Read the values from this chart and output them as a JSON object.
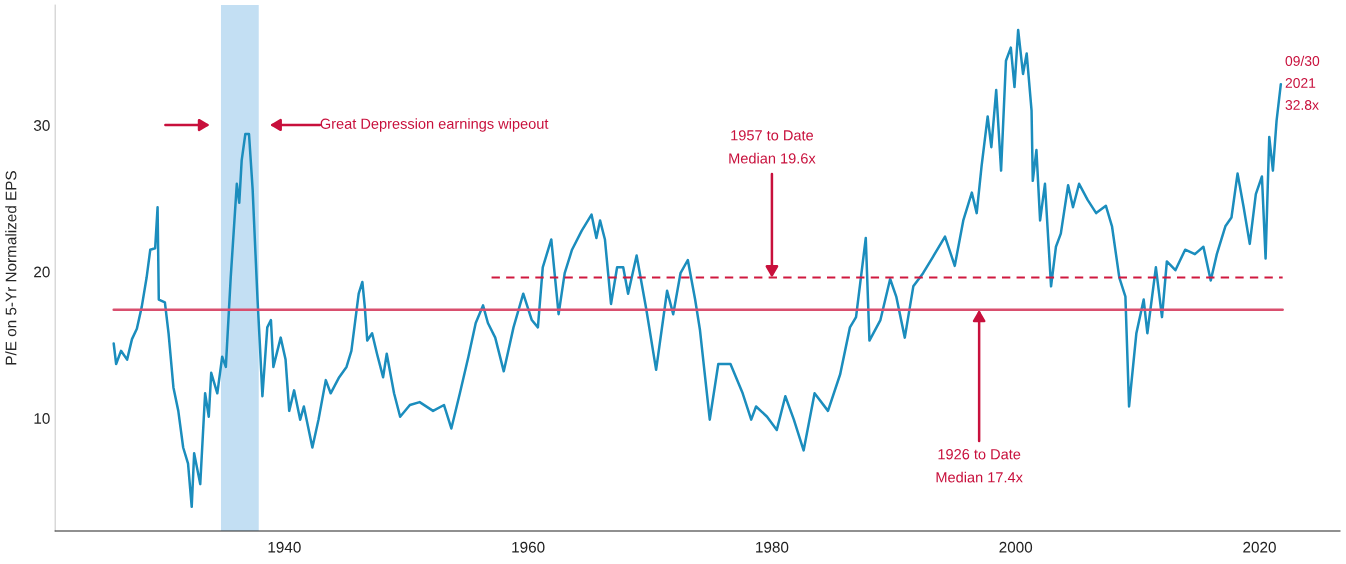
{
  "chart_data": {
    "type": "line",
    "ylabel": "P/E on 5-Yr Normalized EPS",
    "xlim": [
      1921.2,
      2026.6
    ],
    "ylim": [
      2.3,
      38.2
    ],
    "xticks": [
      1940,
      1960,
      1980,
      2000,
      2020
    ],
    "yticks": [
      10,
      20,
      30
    ],
    "grid": false,
    "series": [
      {
        "color": "#1b8dbd",
        "line_style": "solid",
        "x": [
          1926.0,
          1926.2,
          1926.6,
          1927.1,
          1927.5,
          1927.9,
          1928.3,
          1928.7,
          1929.0,
          1929.4,
          1929.6,
          1929.7,
          1930.2,
          1930.5,
          1930.9,
          1931.3,
          1931.7,
          1932.1,
          1932.4,
          1932.6,
          1933.1,
          1933.5,
          1933.8,
          1934.0,
          1934.5,
          1934.9,
          1935.2,
          1935.6,
          1936.1,
          1936.3,
          1936.5,
          1936.8,
          1937.1,
          1937.4,
          1937.5,
          1937.8,
          1938.0,
          1938.2,
          1938.6,
          1938.9,
          1939.1,
          1939.7,
          1940.1,
          1940.4,
          1940.8,
          1941.3,
          1941.6,
          1942.3,
          1942.8,
          1943.4,
          1943.8,
          1944.5,
          1945.1,
          1945.5,
          1946.1,
          1946.4,
          1946.6,
          1946.8,
          1947.2,
          1947.6,
          1948.1,
          1948.4,
          1949.0,
          1949.5,
          1950.3,
          1951.1,
          1952.2,
          1953.1,
          1953.7,
          1954.4,
          1955.1,
          1955.7,
          1956.3,
          1956.7,
          1957.3,
          1958.0,
          1958.8,
          1959.6,
          1960.3,
          1960.8,
          1961.2,
          1961.9,
          1962.5,
          1963.0,
          1963.6,
          1964.4,
          1965.2,
          1965.6,
          1965.9,
          1966.3,
          1966.8,
          1967.3,
          1967.8,
          1968.2,
          1968.9,
          1969.7,
          1970.5,
          1971.4,
          1971.9,
          1972.5,
          1973.1,
          1973.7,
          1974.1,
          1974.9,
          1975.6,
          1976.6,
          1977.6,
          1978.3,
          1978.7,
          1979.6,
          1980.4,
          1981.1,
          1981.8,
          1982.6,
          1983.5,
          1984.6,
          1985.6,
          1986.4,
          1986.9,
          1987.3,
          1987.7,
          1988.0,
          1988.9,
          1989.7,
          1990.2,
          1990.9,
          1991.6,
          1992.4,
          1993.2,
          1994.2,
          1995.0,
          1995.7,
          1996.4,
          1996.8,
          1997.2,
          1997.7,
          1998.0,
          1998.4,
          1998.8,
          1999.2,
          1999.6,
          1999.9,
          2000.2,
          2000.6,
          2000.9,
          2001.3,
          2001.4,
          2001.7,
          2002.0,
          2002.4,
          2002.9,
          2003.3,
          2003.7,
          2004.3,
          2004.7,
          2005.2,
          2005.9,
          2006.6,
          2007.4,
          2007.9,
          2008.5,
          2009.0,
          2009.3,
          2009.9,
          2010.5,
          2010.8,
          2011.5,
          2012.0,
          2012.4,
          2013.1,
          2013.9,
          2014.7,
          2015.4,
          2016.0,
          2016.5,
          2017.2,
          2017.7,
          2018.2,
          2018.7,
          2019.2,
          2019.7,
          2020.2,
          2020.5,
          2020.8,
          2021.1,
          2021.4,
          2021.75
        ],
        "values": [
          15.1,
          13.7,
          14.6,
          14.0,
          15.4,
          16.1,
          17.6,
          19.6,
          21.5,
          21.6,
          24.4,
          18.1,
          17.9,
          15.8,
          12.1,
          10.5,
          8.0,
          6.9,
          3.95,
          7.6,
          5.5,
          11.7,
          10.1,
          13.1,
          11.7,
          14.2,
          13.5,
          19.6,
          26.0,
          24.7,
          27.6,
          29.4,
          29.4,
          25.6,
          23.7,
          18.1,
          14.9,
          11.5,
          16.2,
          16.7,
          13.5,
          15.5,
          14.0,
          10.5,
          11.9,
          9.9,
          10.8,
          8.0,
          9.9,
          12.6,
          11.7,
          12.8,
          13.5,
          14.6,
          18.5,
          19.3,
          17.6,
          15.3,
          15.8,
          14.4,
          12.8,
          14.4,
          11.7,
          10.1,
          10.9,
          11.1,
          10.5,
          10.9,
          9.3,
          11.7,
          14.2,
          16.5,
          17.7,
          16.5,
          15.5,
          13.2,
          16.2,
          18.5,
          16.7,
          16.2,
          20.3,
          22.2,
          17.1,
          19.9,
          21.5,
          22.8,
          23.9,
          22.3,
          23.5,
          22.2,
          17.8,
          20.3,
          20.3,
          18.5,
          21.1,
          17.4,
          13.3,
          18.7,
          17.1,
          19.9,
          20.8,
          18.1,
          16.0,
          9.9,
          13.7,
          13.7,
          11.7,
          9.9,
          10.8,
          10.1,
          9.2,
          11.5,
          9.9,
          7.8,
          11.7,
          10.5,
          13.0,
          16.2,
          16.9,
          19.6,
          22.3,
          15.3,
          16.7,
          19.5,
          18.3,
          15.5,
          19.0,
          19.9,
          21.0,
          22.4,
          20.4,
          23.5,
          25.4,
          24.0,
          27.2,
          30.6,
          28.5,
          32.4,
          26.9,
          34.4,
          35.3,
          32.6,
          36.5,
          33.5,
          34.9,
          31.0,
          26.2,
          28.3,
          23.5,
          26.0,
          19.0,
          21.7,
          22.6,
          25.9,
          24.4,
          26.0,
          24.9,
          24.0,
          24.5,
          23.1,
          19.6,
          18.3,
          10.8,
          15.8,
          18.1,
          15.8,
          20.3,
          16.9,
          20.7,
          20.1,
          21.5,
          21.2,
          21.7,
          19.4,
          21.2,
          23.1,
          23.7,
          26.7,
          24.4,
          21.9,
          25.3,
          26.5,
          20.9,
          29.2,
          26.9,
          30.3,
          32.8
        ]
      },
      {
        "color": "#d94f6e",
        "line_style": "solid",
        "x": [
          1926.0,
          2021.9
        ],
        "values": [
          17.4,
          17.4
        ]
      },
      {
        "color": "#d0193f",
        "line_style": "dashed",
        "x": [
          1957.0,
          2021.9
        ],
        "values": [
          19.6,
          19.6
        ]
      }
    ],
    "bands": [
      {
        "axis": "x",
        "from": 1934.8,
        "to": 1937.9,
        "color": "#c3dff3"
      }
    ],
    "annotations": [
      "Great Depression earnings wipeout",
      {
        "text": "1957 to Date\nMedian 19.6x",
        "x": 1980,
        "y": 19.6
      },
      {
        "text": "1926 to Date\nMedian 17.4x",
        "x": 1997,
        "y": 17.4
      },
      {
        "text": "09/30\n2021\n32.8x",
        "x": 2021.75,
        "y": 32.8
      }
    ]
  }
}
